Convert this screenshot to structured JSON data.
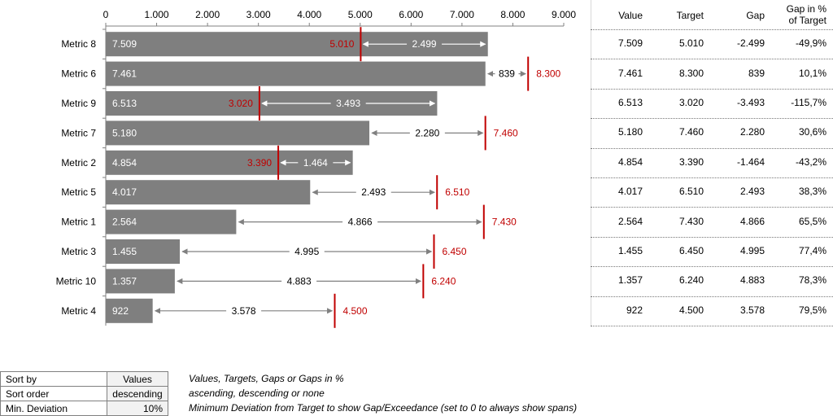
{
  "chart_data": {
    "type": "bar",
    "orientation": "horizontal",
    "xlim": [
      0,
      9000
    ],
    "ticks": [
      "0",
      "1.000",
      "2.000",
      "3.000",
      "4.000",
      "5.000",
      "6.000",
      "7.000",
      "8.000",
      "9.000"
    ],
    "rows": [
      {
        "label": "Metric 8",
        "value": 7509,
        "value_label": "7.509",
        "target": 5010,
        "target_label": "5.010",
        "gap_label": "2.499",
        "gap_pct": "-49,9%",
        "table_gap": "-2.499"
      },
      {
        "label": "Metric 6",
        "value": 7461,
        "value_label": "7.461",
        "target": 8300,
        "target_label": "8.300",
        "gap_label": "839",
        "gap_pct": "10,1%",
        "table_gap": "839"
      },
      {
        "label": "Metric 9",
        "value": 6513,
        "value_label": "6.513",
        "target": 3020,
        "target_label": "3.020",
        "gap_label": "3.493",
        "gap_pct": "-115,7%",
        "table_gap": "-3.493"
      },
      {
        "label": "Metric 7",
        "value": 5180,
        "value_label": "5.180",
        "target": 7460,
        "target_label": "7.460",
        "gap_label": "2.280",
        "gap_pct": "30,6%",
        "table_gap": "2.280"
      },
      {
        "label": "Metric 2",
        "value": 4854,
        "value_label": "4.854",
        "target": 3390,
        "target_label": "3.390",
        "gap_label": "1.464",
        "gap_pct": "-43,2%",
        "table_gap": "-1.464"
      },
      {
        "label": "Metric 5",
        "value": 4017,
        "value_label": "4.017",
        "target": 6510,
        "target_label": "6.510",
        "gap_label": "2.493",
        "gap_pct": "38,3%",
        "table_gap": "2.493"
      },
      {
        "label": "Metric 1",
        "value": 2564,
        "value_label": "2.564",
        "target": 7430,
        "target_label": "7.430",
        "gap_label": "4.866",
        "gap_pct": "65,5%",
        "table_gap": "4.866"
      },
      {
        "label": "Metric 3",
        "value": 1455,
        "value_label": "1.455",
        "target": 6450,
        "target_label": "6.450",
        "gap_label": "4.995",
        "gap_pct": "77,4%",
        "table_gap": "4.995"
      },
      {
        "label": "Metric 10",
        "value": 1357,
        "value_label": "1.357",
        "target": 6240,
        "target_label": "6.240",
        "gap_label": "4.883",
        "gap_pct": "78,3%",
        "table_gap": "4.883"
      },
      {
        "label": "Metric 4",
        "value": 922,
        "value_label": "922",
        "target": 4500,
        "target_label": "4.500",
        "gap_label": "3.578",
        "gap_pct": "79,5%",
        "table_gap": "3.578"
      }
    ],
    "colors": {
      "bar": "#7f7f7f",
      "target": "#c00000",
      "arrow": "#808080"
    }
  },
  "table": {
    "headers": {
      "value": "Value",
      "target": "Target",
      "gap": "Gap",
      "gap_pct_line1": "Gap in %",
      "gap_pct_line2": "of Target"
    }
  },
  "settings": {
    "rows": [
      {
        "label": "Sort by",
        "value": "Values",
        "note": "Values, Targets, Gaps or Gaps in %"
      },
      {
        "label": "Sort order",
        "value": "descending",
        "note": "ascending, descending or none"
      },
      {
        "label": "Min. Deviation",
        "value": "10%",
        "note": "Minimum Deviation from Target to show Gap/Exceedance (set to 0 to always show spans)"
      }
    ]
  }
}
